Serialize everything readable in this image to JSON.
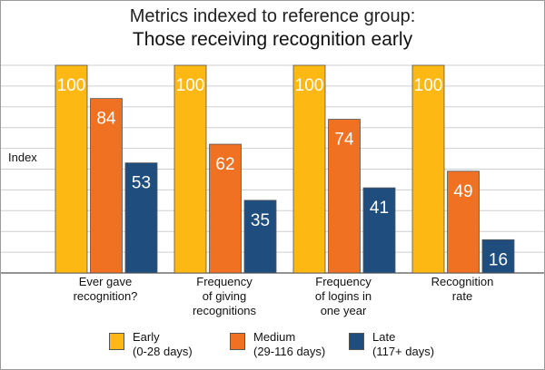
{
  "chart_data": {
    "type": "bar",
    "title": "Metrics indexed to reference group:",
    "subtitle": "Those receiving recognition early",
    "ylabel": "Index",
    "ylim": [
      0,
      100
    ],
    "grid": true,
    "categories": [
      [
        "Ever gave",
        "recognition?"
      ],
      [
        "Frequency",
        "of giving",
        "recognitions"
      ],
      [
        "Frequency",
        "of logins in",
        "one year"
      ],
      [
        "Recognition",
        "rate"
      ]
    ],
    "series": [
      {
        "name": "Early",
        "range": "(0-28 days)",
        "color": "#fdb813",
        "values": [
          100,
          100,
          100,
          100
        ]
      },
      {
        "name": "Medium",
        "range": "(29-116 days)",
        "color": "#f07122",
        "values": [
          84,
          62,
          74,
          49
        ]
      },
      {
        "name": "Late",
        "range": "(117+ days)",
        "color": "#1f4e7e",
        "values": [
          53,
          35,
          41,
          16
        ]
      }
    ],
    "legend": "bottom"
  }
}
